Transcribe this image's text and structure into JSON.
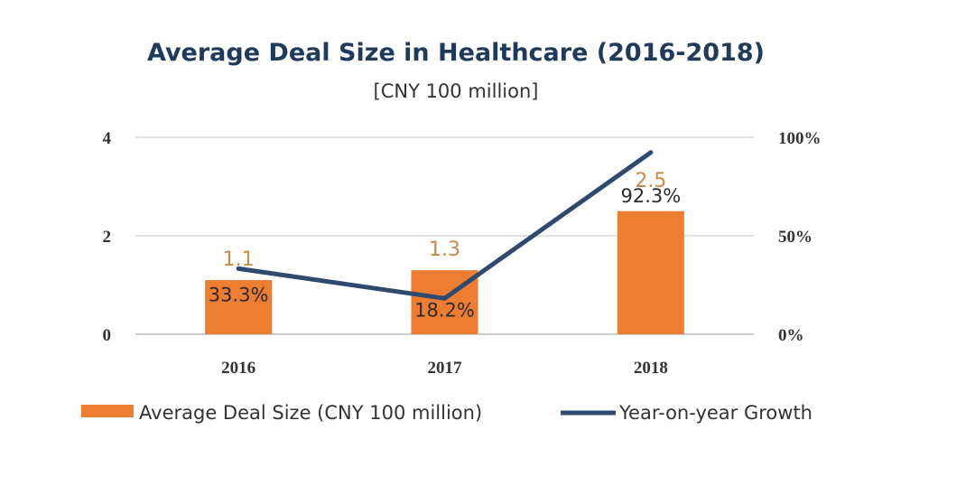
{
  "chart_data": {
    "type": "bar",
    "title": "Average Deal Size in Healthcare (2016-2018)",
    "subtitle": "[CNY 100 million]",
    "categories": [
      "2016",
      "2017",
      "2018"
    ],
    "series": [
      {
        "name": "Average Deal Size (CNY 100 million)",
        "type": "bar",
        "axis": "left",
        "values": [
          1.1,
          1.3,
          2.5
        ],
        "labels": [
          "1.1",
          "1.3",
          "2.5"
        ],
        "color": "#ed7d31"
      },
      {
        "name": "Year-on-year Growth",
        "type": "line",
        "axis": "right",
        "values": [
          33.3,
          18.2,
          92.3
        ],
        "labels": [
          "33.3%",
          "18.2%",
          "92.3%"
        ],
        "color": "#2e4a6e"
      }
    ],
    "y_left": {
      "ylim": [
        0,
        4
      ],
      "ticks": [
        "0",
        "2",
        "4"
      ]
    },
    "y_right": {
      "ylim": [
        0,
        100
      ],
      "ticks": [
        "0%",
        "50%",
        "100%"
      ]
    },
    "grid": true,
    "legend": "bottom",
    "label_color": "#c98a4a"
  }
}
